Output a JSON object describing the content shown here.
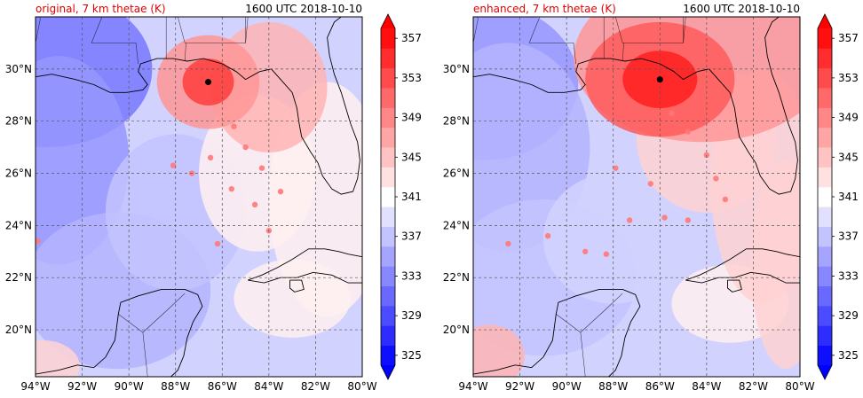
{
  "chart_data": [
    {
      "type": "heatmap",
      "title_left": "original, 7 km thetae (K)",
      "title_right": "1600 UTC 2018-10-10",
      "title_left_color": "#e00000",
      "xlim": [
        -94,
        -80
      ],
      "ylim": [
        18.2,
        32
      ],
      "x_ticks": [
        "94°W",
        "92°W",
        "90°W",
        "88°W",
        "86°W",
        "84°W",
        "82°W",
        "80°W"
      ],
      "y_ticks": [
        "20°N",
        "22°N",
        "24°N",
        "26°N",
        "28°N",
        "30°N"
      ],
      "grid": true,
      "storm_center": {
        "lon": -86.6,
        "lat": 29.5
      },
      "colorbar": {
        "min": 325,
        "max": 359,
        "step": 2,
        "tick_labels": [
          "325",
          "329",
          "333",
          "337",
          "341",
          "345",
          "349",
          "353",
          "357"
        ],
        "cmap": "bwr",
        "extend": "both"
      }
    },
    {
      "type": "heatmap",
      "title_left": "enhanced, 7 km thetae (K)",
      "title_right": "1600 UTC 2018-10-10",
      "title_left_color": "#e00000",
      "xlim": [
        -94,
        -80
      ],
      "ylim": [
        18.2,
        32
      ],
      "x_ticks": [
        "94°W",
        "92°W",
        "90°W",
        "88°W",
        "86°W",
        "84°W",
        "82°W",
        "80°W"
      ],
      "y_ticks": [
        "20°N",
        "22°N",
        "24°N",
        "26°N",
        "28°N",
        "30°N"
      ],
      "grid": true,
      "storm_center": {
        "lon": -86.0,
        "lat": 29.6
      },
      "colorbar": {
        "min": 325,
        "max": 359,
        "step": 2,
        "tick_labels": [
          "325",
          "329",
          "333",
          "337",
          "341",
          "345",
          "349",
          "353",
          "357"
        ],
        "cmap": "bwr",
        "extend": "both"
      }
    }
  ]
}
